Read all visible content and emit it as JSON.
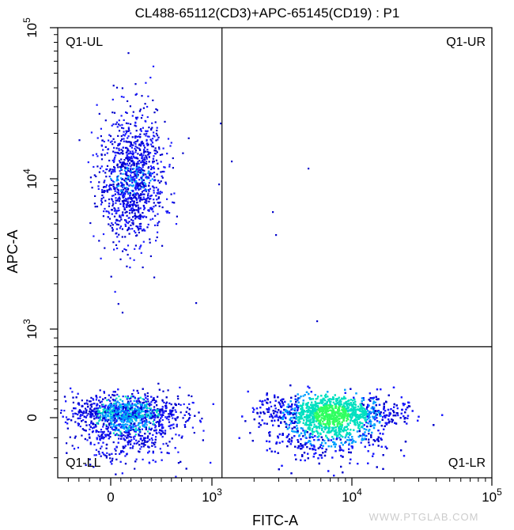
{
  "chart_data": {
    "type": "scatter",
    "title": "CL488-65112(CD3)+APC-65145(CD19) : P1",
    "xlabel": "FITC-A",
    "ylabel": "APC-A",
    "x_scale": "biexponential",
    "y_scale": "biexponential",
    "xlim": [
      -500,
      100000
    ],
    "ylim": [
      -300,
      100000
    ],
    "x_ticks": [
      {
        "value": 0,
        "label": "0"
      },
      {
        "value": 1000,
        "base": "10",
        "exp": "3"
      },
      {
        "value": 10000,
        "base": "10",
        "exp": "4"
      },
      {
        "value": 100000,
        "base": "10",
        "exp": "5"
      }
    ],
    "y_ticks": [
      {
        "value": 0,
        "label": "0"
      },
      {
        "value": 1000,
        "base": "10",
        "exp": "3"
      },
      {
        "value": 10000,
        "base": "10",
        "exp": "4"
      },
      {
        "value": 100000,
        "base": "10",
        "exp": "5"
      }
    ],
    "gate": {
      "x": 1180,
      "y": 800
    },
    "quadrants": [
      "Q1-UL",
      "Q1-UR",
      "Q1-LL",
      "Q1-LR"
    ],
    "density_colors": [
      "#1a1aff",
      "#0000cc",
      "#00a0ff",
      "#00e0c0",
      "#30ff60"
    ],
    "populations": [
      {
        "name": "Q1-UL",
        "x_center": 200,
        "x_spread": 160,
        "y_center_log": 4.0,
        "y_spread_log": 0.22,
        "n": 1150
      },
      {
        "name": "Q1-LL",
        "x_center": 150,
        "x_spread": 260,
        "y_center": 30,
        "y_spread": 110,
        "n": 2100
      },
      {
        "name": "Q1-LR",
        "x_center_log": 3.85,
        "x_spread_log": 0.22,
        "y_center": 30,
        "y_spread": 110,
        "n": 5200
      }
    ]
  },
  "watermark": "WWW.PTGLAB.COM"
}
